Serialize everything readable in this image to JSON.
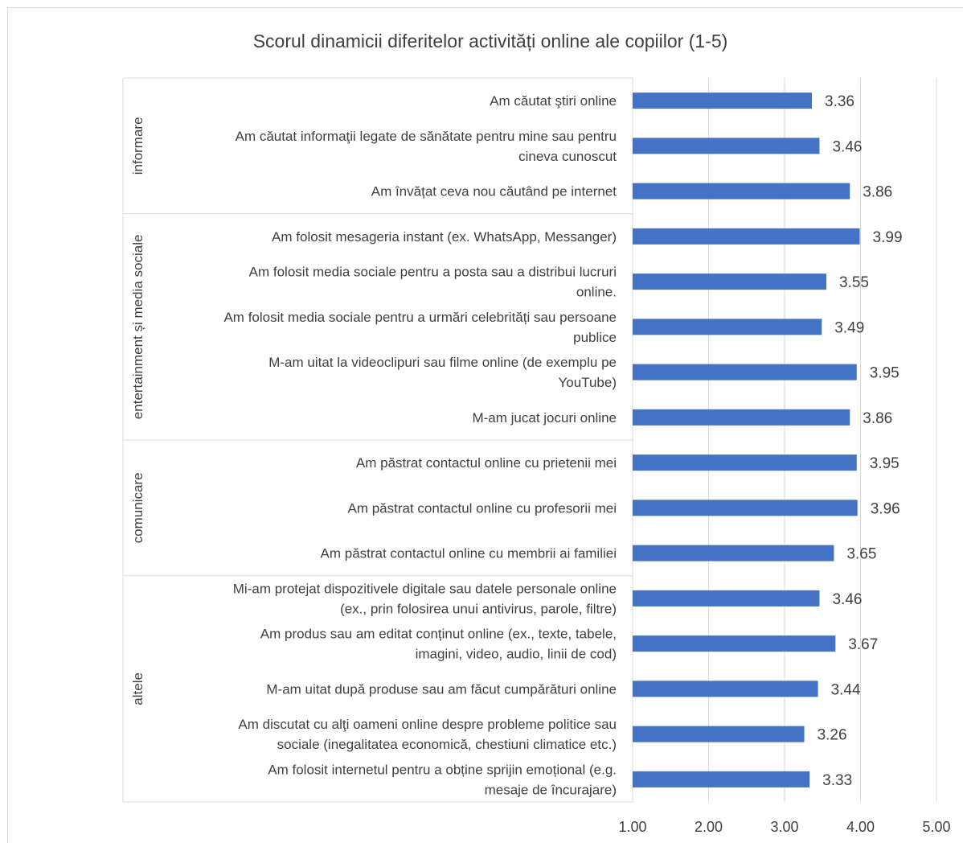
{
  "chart_data": {
    "type": "bar",
    "orientation": "horizontal",
    "title": "Scorul dinamicii diferitelor activități online ale copiilor (1-5)",
    "xlim": [
      1,
      5
    ],
    "xticks": [
      "1.00",
      "2.00",
      "3.00",
      "4.00",
      "5.00"
    ],
    "grid": true,
    "color": "#4472c4",
    "groups": [
      {
        "name": "informare",
        "items": [
          {
            "label": [
              "Am căutat ştiri online"
            ],
            "value": 3.36,
            "value_label": "3.36"
          },
          {
            "label": [
              "Am căutat informaţii legate de sănătate pentru mine sau pentru",
              "cineva cunoscut"
            ],
            "value": 3.46,
            "value_label": "3.46"
          },
          {
            "label": [
              "Am învățat ceva nou căutând pe internet"
            ],
            "value": 3.86,
            "value_label": "3.86"
          }
        ]
      },
      {
        "name": "entertainment și media sociale",
        "items": [
          {
            "label": [
              "Am folosit mesageria instant (ex. WhatsApp, Messanger)"
            ],
            "value": 3.99,
            "value_label": "3.99"
          },
          {
            "label": [
              "Am folosit media sociale pentru a posta sau a distribui lucruri",
              "online."
            ],
            "value": 3.55,
            "value_label": "3.55"
          },
          {
            "label": [
              "Am folosit media sociale pentru a urmări celebrități sau persoane",
              "publice"
            ],
            "value": 3.49,
            "value_label": "3.49"
          },
          {
            "label": [
              "M-am uitat la videoclipuri sau filme online (de exemplu pe",
              "YouTube)"
            ],
            "value": 3.95,
            "value_label": "3.95"
          },
          {
            "label": [
              "M-am jucat jocuri online"
            ],
            "value": 3.86,
            "value_label": "3.86"
          }
        ]
      },
      {
        "name": "comunicare",
        "items": [
          {
            "label": [
              "Am păstrat contactul online cu prietenii mei"
            ],
            "value": 3.95,
            "value_label": "3.95"
          },
          {
            "label": [
              "Am păstrat contactul online cu profesorii mei"
            ],
            "value": 3.96,
            "value_label": "3.96"
          },
          {
            "label": [
              "Am păstrat contactul online cu membrii ai familiei"
            ],
            "value": 3.65,
            "value_label": "3.65"
          }
        ]
      },
      {
        "name": "altele",
        "items": [
          {
            "label": [
              "Mi-am protejat dispozitivele digitale sau datele personale online",
              "(ex., prin folosirea unui antivirus, parole, filtre)"
            ],
            "value": 3.46,
            "value_label": "3.46"
          },
          {
            "label": [
              "Am produs sau am editat conținut online (ex., texte, tabele,",
              "imagini, video, audio, linii de cod)"
            ],
            "value": 3.67,
            "value_label": "3.67"
          },
          {
            "label": [
              "M-am uitat după produse sau am făcut cumpărături online"
            ],
            "value": 3.44,
            "value_label": "3.44"
          },
          {
            "label": [
              "Am discutat cu alţi oameni online despre probleme politice sau",
              "sociale (inegalitatea economică, chestiuni climatice etc.)"
            ],
            "value": 3.26,
            "value_label": "3.26"
          },
          {
            "label": [
              "Am folosit internetul pentru a obține sprijin emoțional (e.g.",
              "mesaje de încurajare)"
            ],
            "value": 3.33,
            "value_label": "3.33"
          }
        ]
      }
    ]
  }
}
